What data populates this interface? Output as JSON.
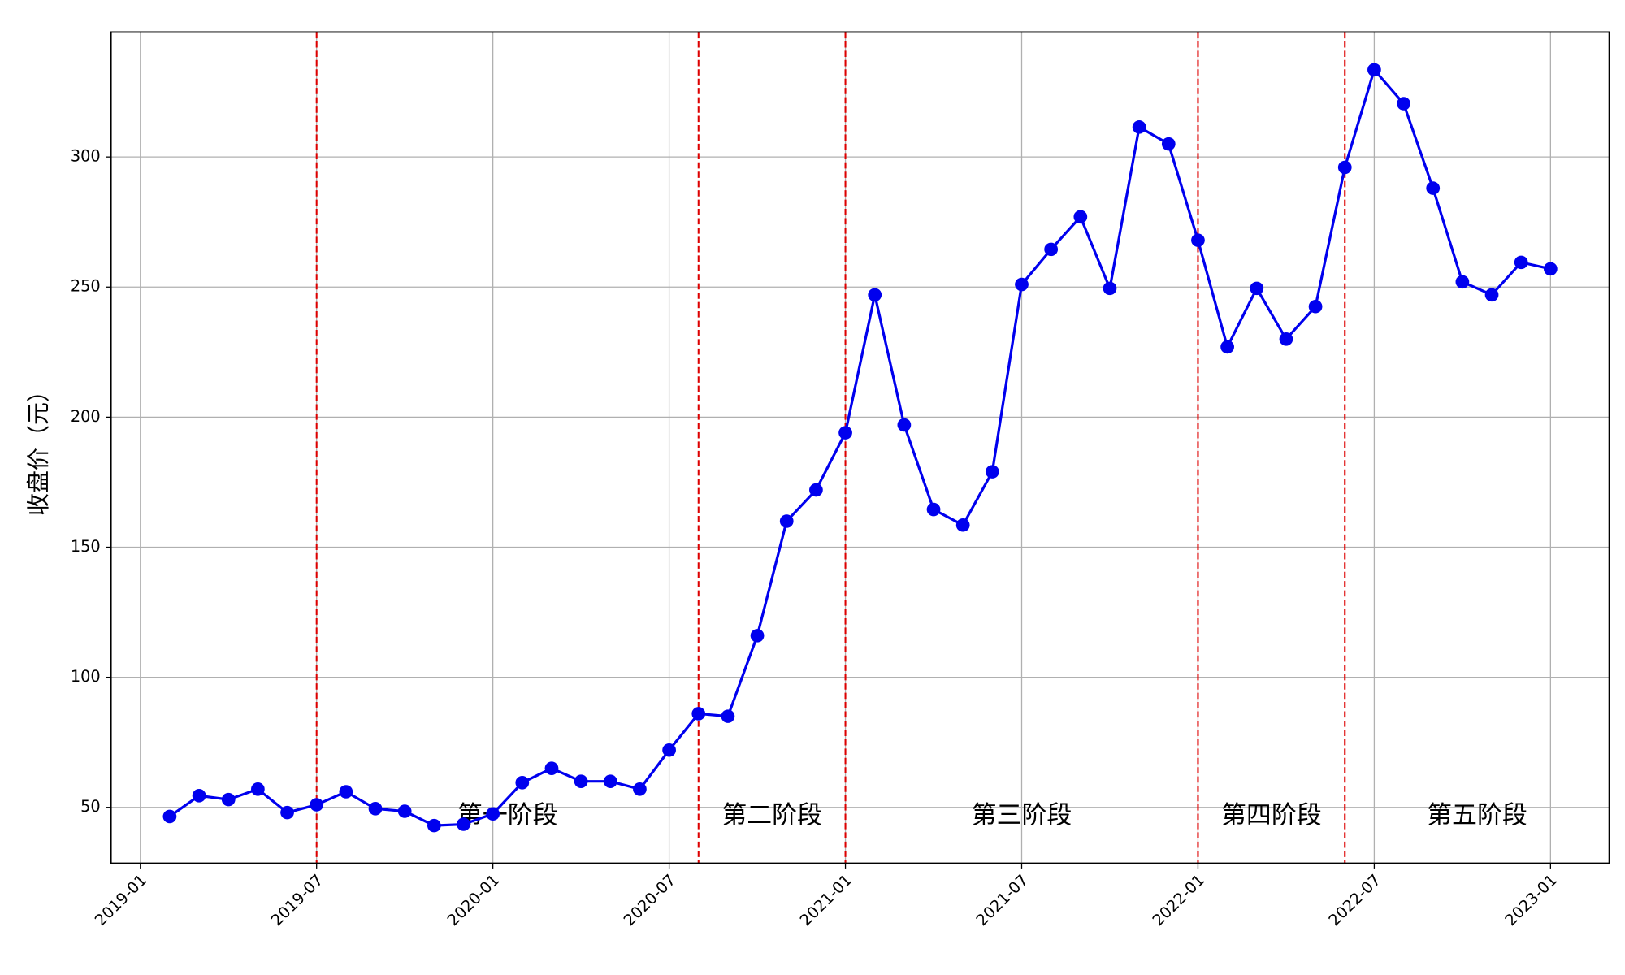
{
  "chart_data": {
    "type": "line",
    "y_label": "收盘价（元）",
    "x": [
      "2019-01",
      "2019-02",
      "2019-03",
      "2019-04",
      "2019-05",
      "2019-06",
      "2019-07",
      "2019-08",
      "2019-09",
      "2019-10",
      "2019-11",
      "2019-12",
      "2020-01",
      "2020-02",
      "2020-03",
      "2020-04",
      "2020-05",
      "2020-06",
      "2020-07",
      "2020-08",
      "2020-09",
      "2020-10",
      "2020-11",
      "2020-12",
      "2021-01",
      "2021-02",
      "2021-03",
      "2021-04",
      "2021-05",
      "2021-06",
      "2021-07",
      "2021-08",
      "2021-09",
      "2021-10",
      "2021-11",
      "2021-12",
      "2022-01",
      "2022-02",
      "2022-03",
      "2022-04",
      "2022-05",
      "2022-06",
      "2022-07",
      "2022-08",
      "2022-09",
      "2022-10",
      "2022-11",
      "2022-12"
    ],
    "series": [
      {
        "color": "#0000ee",
        "values": [
          46.5,
          54.5,
          53,
          57,
          48,
          51,
          56,
          49.5,
          48.5,
          43,
          43.5,
          47.5,
          59.5,
          65,
          60,
          60,
          57,
          72,
          86,
          85,
          116,
          160,
          172,
          194,
          247,
          197,
          164.5,
          158.5,
          179,
          251,
          264.5,
          277,
          249.5,
          311.5,
          305,
          268,
          227,
          249.5,
          230,
          242.5,
          296,
          333.5,
          320.5,
          288,
          252,
          247,
          259.5,
          257
        ]
      }
    ],
    "xlim": [
      "2018-12",
      "2023-03"
    ],
    "xticks": [
      "2019-01",
      "2019-07",
      "2020-01",
      "2020-07",
      "2021-01",
      "2021-07",
      "2022-01",
      "2022-07",
      "2023-01"
    ],
    "ylim": [
      28.5,
      348
    ],
    "yticks": [
      50,
      100,
      150,
      200,
      250,
      300
    ],
    "grid": true,
    "phase_lines": [
      "2019-06",
      "2020-07",
      "2020-12",
      "2021-12",
      "2022-05"
    ],
    "phase_line_color": "#dd0000",
    "phase_labels": [
      "第一阶段",
      "第二阶段",
      "第三阶段",
      "第四阶段",
      "第五阶段"
    ],
    "phase_label_color": "#008000"
  }
}
